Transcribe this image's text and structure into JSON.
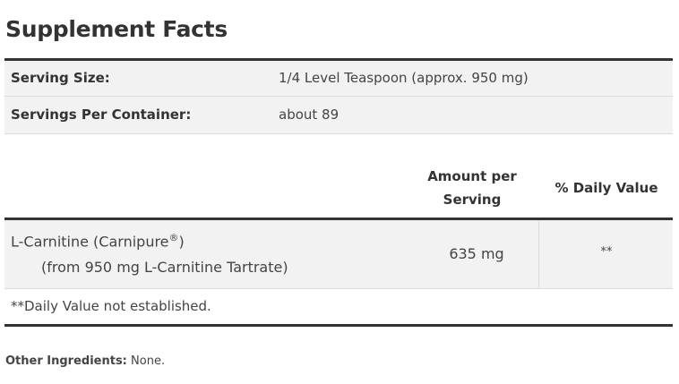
{
  "title": "Supplement Facts",
  "serving": [
    {
      "label": "Serving Size:",
      "value": "1/4 Level Teaspoon (approx. 950 mg)"
    },
    {
      "label": "Servings Per Container:",
      "value": "about 89"
    }
  ],
  "columns": {
    "amount": "Amount per Serving",
    "daily_value": "% Daily Value"
  },
  "ingredients": [
    {
      "name": "L-Carnitine (Carnipure",
      "reg": "®",
      "name_end": ")",
      "sub": "(from 950 mg L-Carnitine Tartrate)",
      "amount": "635 mg",
      "daily_value": "**"
    }
  ],
  "footnote": "**Daily Value not established.",
  "other_ingredients": {
    "label": "Other Ingredients:",
    "value": "None."
  }
}
